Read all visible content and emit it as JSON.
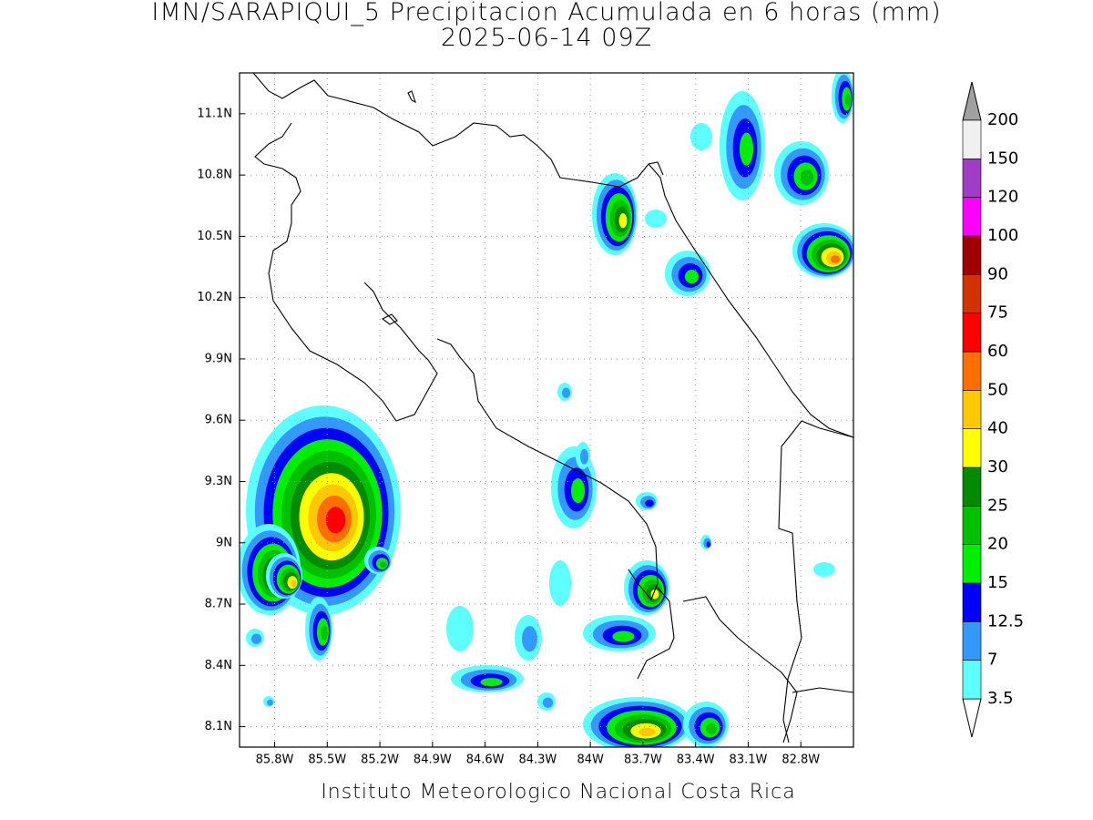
{
  "title": "IMN/SARAPIQUI_5 Precipitacion Acumulada en 6 horas (mm)",
  "subtitle": "2025-06-14 09Z",
  "credit": "Instituto Meteorologico Nacional Costa Rica",
  "map": {
    "xlim": [
      -86.0,
      -82.5
    ],
    "ylim": [
      8.0,
      11.3
    ],
    "xticks": [
      {
        "value": -85.8,
        "label": "85.8W"
      },
      {
        "value": -85.5,
        "label": "85.5W"
      },
      {
        "value": -85.2,
        "label": "85.2W"
      },
      {
        "value": -84.9,
        "label": "84.9W"
      },
      {
        "value": -84.6,
        "label": "84.6W"
      },
      {
        "value": -84.3,
        "label": "84.3W"
      },
      {
        "value": -84.0,
        "label": "84W"
      },
      {
        "value": -83.7,
        "label": "83.7W"
      },
      {
        "value": -83.4,
        "label": "83.4W"
      },
      {
        "value": -83.1,
        "label": "83.1W"
      },
      {
        "value": -82.8,
        "label": "82.8W"
      }
    ],
    "yticks": [
      {
        "value": 8.1,
        "label": "8.1N"
      },
      {
        "value": 8.4,
        "label": "8.4N"
      },
      {
        "value": 8.7,
        "label": "8.7N"
      },
      {
        "value": 9.0,
        "label": "9N"
      },
      {
        "value": 9.3,
        "label": "9.3N"
      },
      {
        "value": 9.6,
        "label": "9.6N"
      },
      {
        "value": 9.9,
        "label": "9.9N"
      },
      {
        "value": 10.2,
        "label": "10.2N"
      },
      {
        "value": 10.5,
        "label": "10.5N"
      },
      {
        "value": 10.8,
        "label": "10.8N"
      },
      {
        "value": 11.1,
        "label": "11.1N"
      }
    ],
    "grid": true
  },
  "colorbar": {
    "levels": [
      3.5,
      7,
      12.5,
      15,
      20,
      25,
      30,
      40,
      50,
      60,
      75,
      90,
      100,
      120,
      150,
      200
    ],
    "colors": [
      "#5effff",
      "#3399ff",
      "#0000ff",
      "#00ee00",
      "#00c000",
      "#008b00",
      "#ffff00",
      "#ffc800",
      "#ff6e00",
      "#ff0000",
      "#d23200",
      "#a00000",
      "#ff00ff",
      "#a03cc8",
      "#f0f0f0"
    ],
    "over_color": "#a0a0a0",
    "under_color": "#ffffff"
  }
}
